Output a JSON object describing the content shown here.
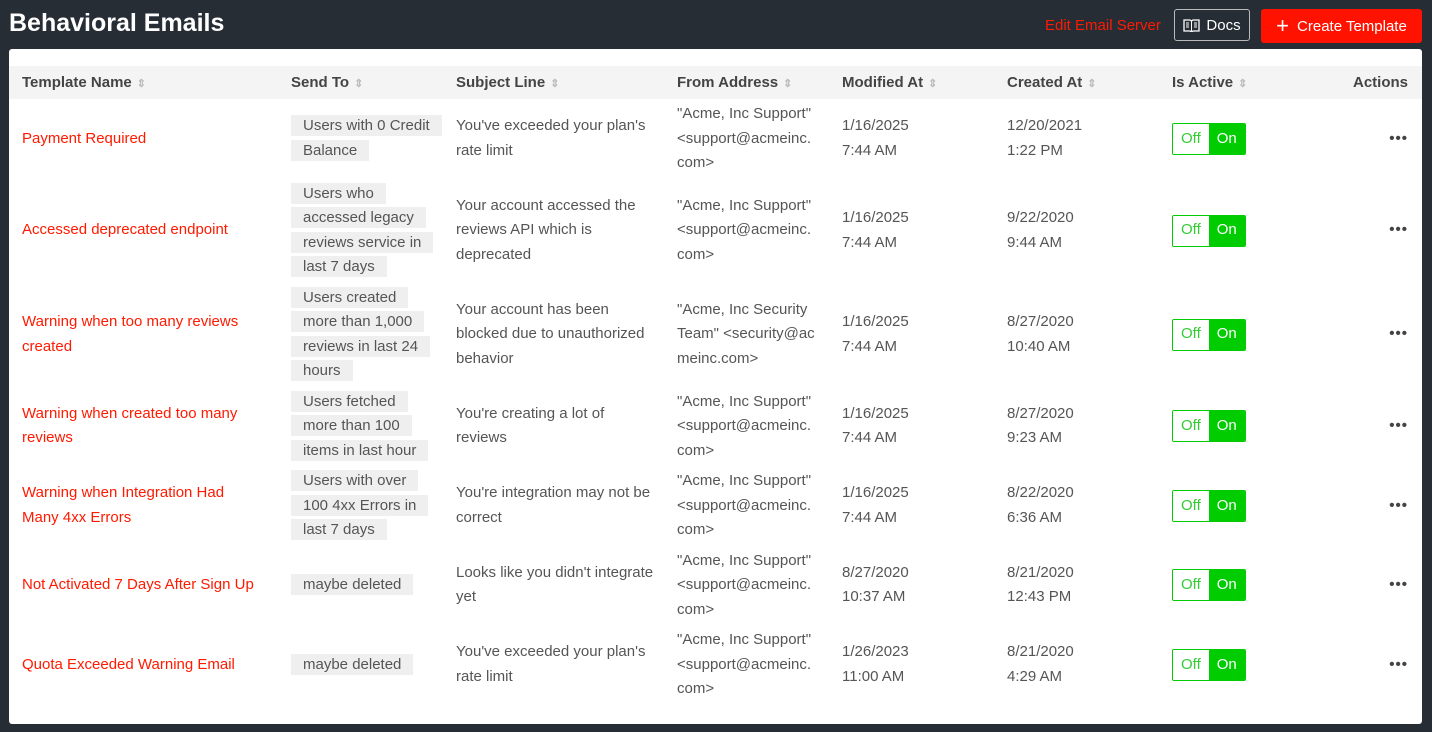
{
  "header": {
    "title": "Behavioral Emails",
    "edit_server": "Edit Email Server",
    "docs": "Docs",
    "create": "Create Template"
  },
  "colors": {
    "accent": "#ff1200",
    "active": "#00cc00",
    "background": "#262d35"
  },
  "table": {
    "columns": [
      "Template Name",
      "Send To",
      "Subject Line",
      "From Address",
      "Modified At",
      "Created At",
      "Is Active",
      "Actions"
    ],
    "toggle": {
      "off": "Off",
      "on": "On"
    },
    "actions_icon": "•••",
    "rows": [
      {
        "name": "Payment Required",
        "send_to": "Users with 0 Credit Balance",
        "subject": "You've exceeded your plan's rate limit",
        "from": "\"Acme, Inc Support\" <support@acmeinc.com>",
        "modified": [
          "1/16/2025",
          "7:44 AM"
        ],
        "created": [
          "12/20/2021",
          "1:22 PM"
        ],
        "active": true
      },
      {
        "name": "Accessed deprecated endpoint",
        "send_to": "Users who accessed legacy reviews service in last 7 days",
        "subject": "Your account accessed the reviews API which is deprecated",
        "from": "\"Acme, Inc Support\" <support@acmeinc.com>",
        "modified": [
          "1/16/2025",
          "7:44 AM"
        ],
        "created": [
          "9/22/2020",
          "9:44 AM"
        ],
        "active": true
      },
      {
        "name": "Warning when too many reviews created",
        "send_to": "Users created more than 1,000 reviews in last 24 hours",
        "subject": "Your account has been blocked due to unauthorized behavior",
        "from": "\"Acme, Inc Security Team\" <security@acmeinc.com>",
        "modified": [
          "1/16/2025",
          "7:44 AM"
        ],
        "created": [
          "8/27/2020",
          "10:40 AM"
        ],
        "active": true
      },
      {
        "name": "Warning when created too many reviews",
        "send_to": "Users fetched more than 100 items in last hour",
        "subject": "You're creating a lot of reviews",
        "from": "\"Acme, Inc Support\" <support@acmeinc.com>",
        "modified": [
          "1/16/2025",
          "7:44 AM"
        ],
        "created": [
          "8/27/2020",
          "9:23 AM"
        ],
        "active": true
      },
      {
        "name": "Warning when Integration Had Many 4xx Errors",
        "send_to": "Users with over 100 4xx Errors in last 7 days",
        "subject": "You're integration may not be correct",
        "from": "\"Acme, Inc Support\" <support@acmeinc.com>",
        "modified": [
          "1/16/2025",
          "7:44 AM"
        ],
        "created": [
          "8/22/2020",
          "6:36 AM"
        ],
        "active": true
      },
      {
        "name": "Not Activated 7 Days After Sign Up",
        "send_to": "maybe deleted",
        "subject": "Looks like you didn't integrate yet",
        "from": "\"Acme, Inc Support\" <support@acmeinc.com>",
        "modified": [
          "8/27/2020",
          "10:37 AM"
        ],
        "created": [
          "8/21/2020",
          "12:43 PM"
        ],
        "active": true
      },
      {
        "name": "Quota Exceeded Warning Email",
        "send_to": "maybe deleted",
        "subject": "You've exceeded your plan's rate limit",
        "from": "\"Acme, Inc Support\" <support@acmeinc.com>",
        "modified": [
          "1/26/2023",
          "11:00 AM"
        ],
        "created": [
          "8/21/2020",
          "4:29 AM"
        ],
        "active": true
      }
    ]
  }
}
